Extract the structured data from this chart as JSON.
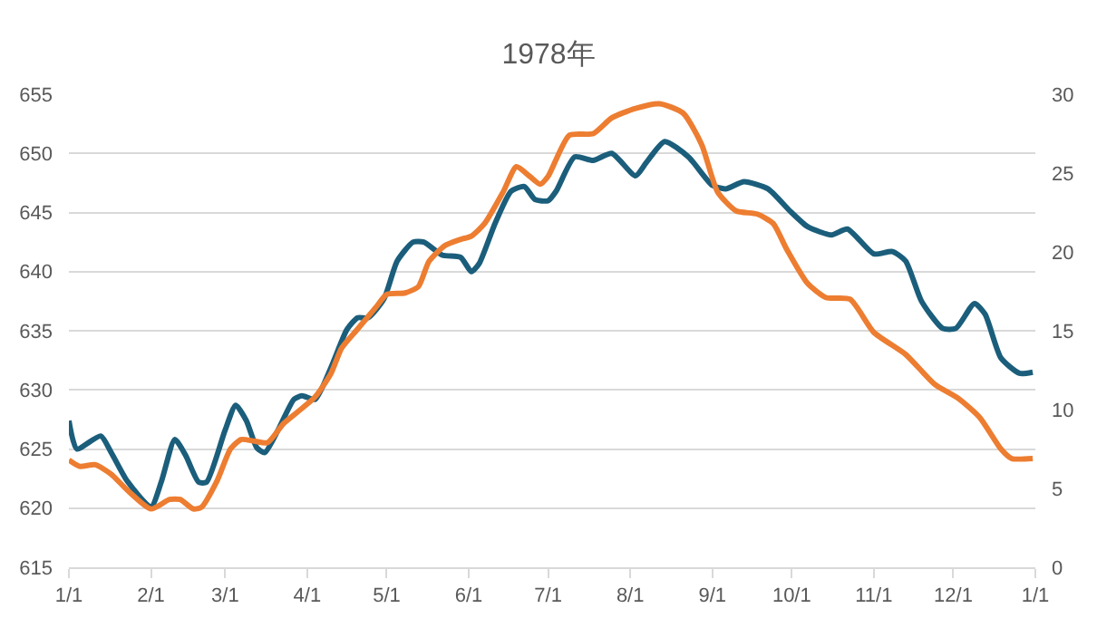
{
  "chart_data": {
    "type": "line",
    "title": "1978年",
    "series": [
      {
        "color": "#1b5e7b",
        "axis": "y",
        "x": [
          "1978-01-01",
          "1978-01-04",
          "1978-01-13",
          "1978-01-17",
          "1978-01-23",
          "1978-02-01",
          "1978-02-05",
          "1978-02-10",
          "1978-02-14",
          "1978-02-19",
          "1978-02-22",
          "1978-03-01",
          "1978-03-05",
          "1978-03-09",
          "1978-03-13",
          "1978-03-16",
          "1978-03-21",
          "1978-03-27",
          "1978-03-30",
          "1978-04-04",
          "1978-04-10",
          "1978-04-16",
          "1978-04-20",
          "1978-04-24",
          "1978-04-30",
          "1978-05-05",
          "1978-05-11",
          "1978-05-15",
          "1978-05-22",
          "1978-05-29",
          "1978-06-02",
          "1978-06-05",
          "1978-06-11",
          "1978-06-17",
          "1978-06-22",
          "1978-06-26",
          "1978-07-01",
          "1978-07-04",
          "1978-07-11",
          "1978-07-18",
          "1978-07-25",
          "1978-08-03",
          "1978-08-07",
          "1978-08-14",
          "1978-08-23",
          "1978-09-01",
          "1978-09-06",
          "1978-09-13",
          "1978-09-22",
          "1978-09-30",
          "1978-10-07",
          "1978-10-16",
          "1978-10-22",
          "1978-11-01",
          "1978-11-08",
          "1978-11-13",
          "1978-11-19",
          "1978-11-27",
          "1978-12-02",
          "1978-12-09",
          "1978-12-13",
          "1978-12-19",
          "1978-12-26",
          "1978-12-31"
        ],
        "values": [
          627.4,
          625.0,
          626.1,
          624.7,
          622.3,
          620.1,
          622.3,
          625.8,
          624.5,
          622.2,
          622.2,
          626.6,
          628.7,
          627.4,
          625.1,
          624.7,
          626.6,
          629.2,
          629.5,
          629.2,
          631.9,
          635.1,
          636.1,
          636.1,
          637.7,
          640.9,
          642.5,
          642.5,
          641.4,
          641.2,
          640.0,
          640.7,
          644.1,
          646.8,
          647.2,
          646.1,
          646.0,
          646.8,
          649.7,
          649.4,
          650.0,
          648.1,
          649.2,
          651.0,
          649.7,
          647.3,
          647.0,
          647.6,
          647.0,
          645.2,
          643.8,
          643.1,
          643.6,
          641.5,
          641.7,
          640.9,
          637.5,
          635.2,
          635.2,
          637.3,
          636.4,
          632.7,
          631.4,
          631.5
        ]
      },
      {
        "color": "#ed7d31",
        "axis": "y2",
        "x": [
          "1978-01-01",
          "1978-01-05",
          "1978-01-11",
          "1978-01-17",
          "1978-01-23",
          "1978-02-01",
          "1978-02-08",
          "1978-02-12",
          "1978-02-17",
          "1978-02-20",
          "1978-02-26",
          "1978-03-03",
          "1978-03-07",
          "1978-03-12",
          "1978-03-17",
          "1978-03-23",
          "1978-03-28",
          "1978-04-04",
          "1978-04-10",
          "1978-04-14",
          "1978-04-20",
          "1978-04-27",
          "1978-05-01",
          "1978-05-08",
          "1978-05-13",
          "1978-05-17",
          "1978-05-23",
          "1978-05-29",
          "1978-06-02",
          "1978-06-07",
          "1978-06-14",
          "1978-06-19",
          "1978-06-24",
          "1978-06-28",
          "1978-07-01",
          "1978-07-09",
          "1978-07-18",
          "1978-07-25",
          "1978-08-03",
          "1978-08-12",
          "1978-08-21",
          "1978-08-28",
          "1978-09-03",
          "1978-09-10",
          "1978-09-18",
          "1978-09-24",
          "1978-09-29",
          "1978-10-07",
          "1978-10-14",
          "1978-10-23",
          "1978-11-01",
          "1978-11-13",
          "1978-11-24",
          "1978-12-03",
          "1978-12-11",
          "1978-12-19",
          "1978-12-23",
          "1978-12-31"
        ],
        "values": [
          6.8,
          6.4,
          6.5,
          5.9,
          4.9,
          3.7,
          4.3,
          4.3,
          3.7,
          3.8,
          5.5,
          7.5,
          8.1,
          8.0,
          7.9,
          9.1,
          9.8,
          10.8,
          12.3,
          13.9,
          15.1,
          16.5,
          17.3,
          17.4,
          17.8,
          19.4,
          20.4,
          20.8,
          21.0,
          21.8,
          23.8,
          25.4,
          24.8,
          24.3,
          24.8,
          27.4,
          27.5,
          28.5,
          29.1,
          29.4,
          28.8,
          26.8,
          23.8,
          22.6,
          22.4,
          21.8,
          20.2,
          18.0,
          17.1,
          17.0,
          14.9,
          13.5,
          11.6,
          10.7,
          9.5,
          7.5,
          6.9,
          6.9
        ]
      }
    ],
    "xlim": [
      "1978-01-01",
      "1979-01-01"
    ],
    "xticks": [
      {
        "value": "1978-01-01",
        "label": "1/1"
      },
      {
        "value": "1978-02-01",
        "label": "2/1"
      },
      {
        "value": "1978-03-01",
        "label": "3/1"
      },
      {
        "value": "1978-04-01",
        "label": "4/1"
      },
      {
        "value": "1978-05-01",
        "label": "5/1"
      },
      {
        "value": "1978-06-01",
        "label": "6/1"
      },
      {
        "value": "1978-07-01",
        "label": "7/1"
      },
      {
        "value": "1978-08-01",
        "label": "8/1"
      },
      {
        "value": "1978-09-01",
        "label": "9/1"
      },
      {
        "value": "1978-10-01",
        "label": "10/1"
      },
      {
        "value": "1978-11-01",
        "label": "11/1"
      },
      {
        "value": "1978-12-01",
        "label": "12/1"
      },
      {
        "value": "1979-01-01",
        "label": "1/1"
      }
    ],
    "ylim": [
      615,
      655
    ],
    "yticks": [
      615,
      620,
      625,
      630,
      635,
      640,
      645,
      650,
      655
    ],
    "y2lim": [
      0,
      30
    ],
    "y2ticks": [
      0,
      5,
      10,
      15,
      20,
      25,
      30
    ],
    "grid": "y",
    "marker": "none",
    "line_style": "solid"
  }
}
